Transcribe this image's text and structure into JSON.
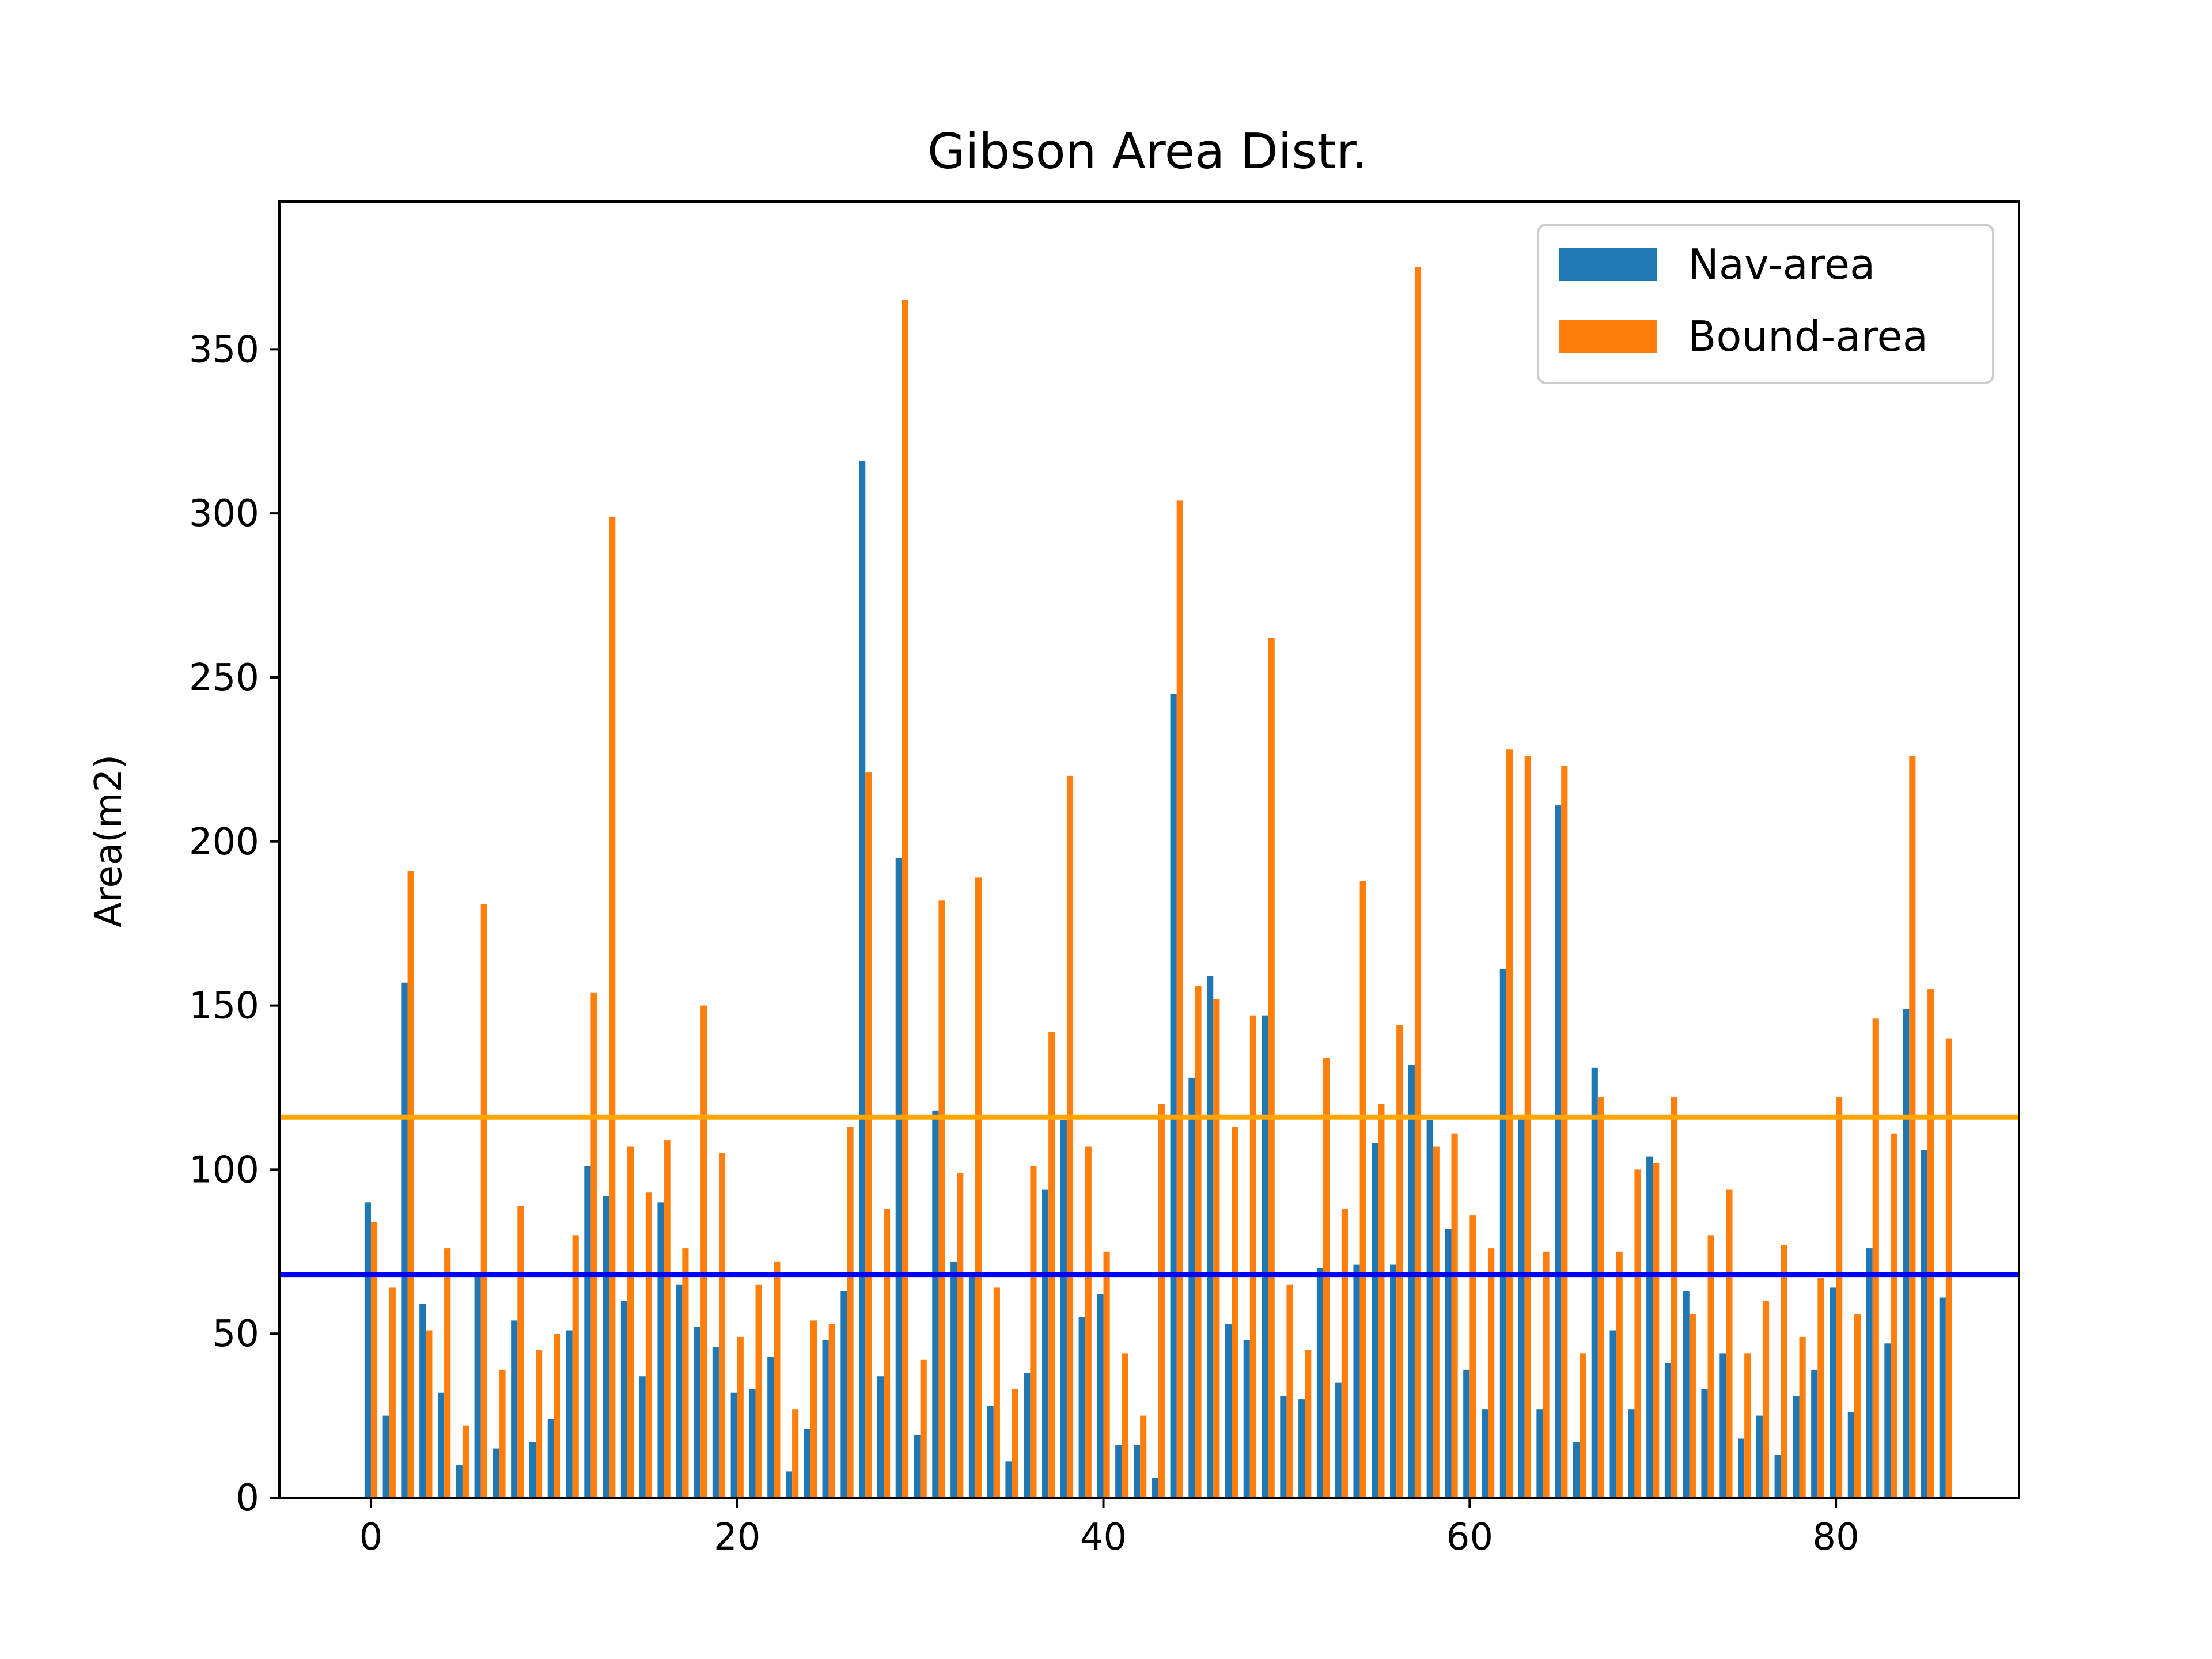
{
  "chart_data": {
    "type": "bar",
    "title": "Gibson Area Distr.",
    "xlabel": "",
    "ylabel": "Area(m2)",
    "xlim": [
      -5,
      90
    ],
    "ylim": [
      0,
      395
    ],
    "xticks": [
      0,
      20,
      40,
      60,
      80
    ],
    "yticks": [
      0,
      50,
      100,
      150,
      200,
      250,
      300,
      350
    ],
    "grid": false,
    "legend_position": "top-right",
    "series": [
      {
        "name": "Nav-area",
        "color": "#1f77b4",
        "values": [
          90,
          25,
          157,
          59,
          32,
          10,
          68,
          15,
          54,
          17,
          24,
          51,
          101,
          92,
          60,
          37,
          90,
          65,
          52,
          46,
          32,
          33,
          43,
          8,
          21,
          48,
          63,
          316,
          37,
          195,
          19,
          118,
          72,
          68,
          28,
          11,
          38,
          94,
          115,
          55,
          62,
          16,
          16,
          6,
          245,
          128,
          159,
          53,
          48,
          147,
          31,
          30,
          70,
          35,
          71,
          108,
          71,
          132,
          115,
          82,
          39,
          27,
          161,
          116,
          27,
          211,
          17,
          131,
          51,
          27,
          104,
          41,
          63,
          33,
          44,
          18,
          25,
          13,
          31,
          39,
          64,
          26,
          76,
          47,
          149,
          106,
          61
        ]
      },
      {
        "name": "Bound-area",
        "color": "#ff7f0e",
        "values": [
          84,
          64,
          191,
          51,
          76,
          22,
          181,
          39,
          89,
          45,
          50,
          80,
          154,
          299,
          107,
          93,
          109,
          76,
          150,
          105,
          49,
          65,
          72,
          27,
          54,
          53,
          113,
          221,
          88,
          365,
          42,
          182,
          99,
          189,
          64,
          33,
          101,
          142,
          220,
          107,
          75,
          44,
          25,
          120,
          304,
          156,
          152,
          113,
          147,
          262,
          65,
          45,
          134,
          88,
          188,
          120,
          144,
          375,
          107,
          111,
          86,
          76,
          228,
          226,
          75,
          223,
          44,
          122,
          75,
          100,
          102,
          122,
          56,
          80,
          94,
          44,
          60,
          77,
          49,
          67,
          122,
          56,
          146,
          111,
          226,
          155,
          140
        ]
      }
    ],
    "hlines": [
      {
        "value": 116,
        "color": "#ffa500"
      },
      {
        "value": 68,
        "color": "#0000ff"
      }
    ]
  }
}
